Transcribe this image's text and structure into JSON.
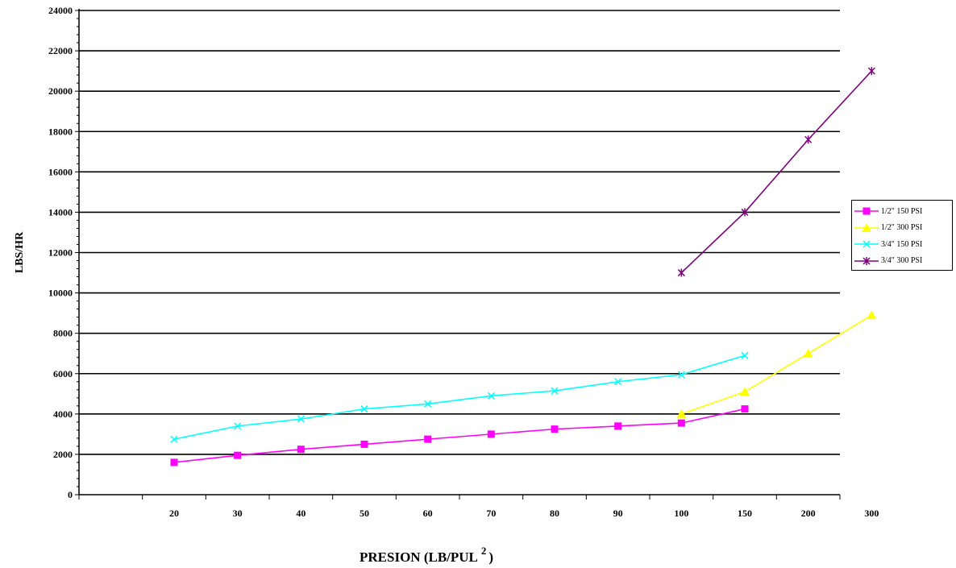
{
  "chart_data": {
    "type": "line",
    "title": "",
    "xlabel": "PRESION (LB/PUL",
    "xlabel_superscript": "2",
    "xlabel_close": ")",
    "ylabel": "LBS/HR",
    "categories": [
      "20",
      "30",
      "40",
      "50",
      "60",
      "70",
      "80",
      "90",
      "100",
      "150",
      "200",
      "300"
    ],
    "ylim": [
      0,
      24000
    ],
    "yticks": [
      0,
      2000,
      4000,
      6000,
      8000,
      10000,
      12000,
      14000,
      16000,
      18000,
      20000,
      22000,
      24000
    ],
    "grid": "horizontal",
    "legend_position": "right",
    "series": [
      {
        "name": "1/2\" 150 PSI",
        "color": "#ff00ff",
        "marker": "square",
        "values": [
          1600,
          1950,
          2250,
          2500,
          2750,
          3000,
          3250,
          3400,
          3550,
          4250,
          null,
          null
        ]
      },
      {
        "name": "1/2\" 300 PSI",
        "color": "#ffff00",
        "marker": "triangle",
        "values": [
          null,
          null,
          null,
          null,
          null,
          null,
          null,
          null,
          4000,
          5100,
          7000,
          8900
        ]
      },
      {
        "name": "3/4\" 150 PSI",
        "color": "#00ffff",
        "marker": "x",
        "values": [
          2750,
          3400,
          3750,
          4250,
          4500,
          4900,
          5150,
          5600,
          5950,
          6900,
          null,
          null
        ]
      },
      {
        "name": "3/4\" 300 PSI",
        "color": "#800080",
        "marker": "star",
        "values": [
          null,
          null,
          null,
          null,
          null,
          null,
          null,
          null,
          11000,
          14000,
          17600,
          21000
        ]
      }
    ]
  }
}
